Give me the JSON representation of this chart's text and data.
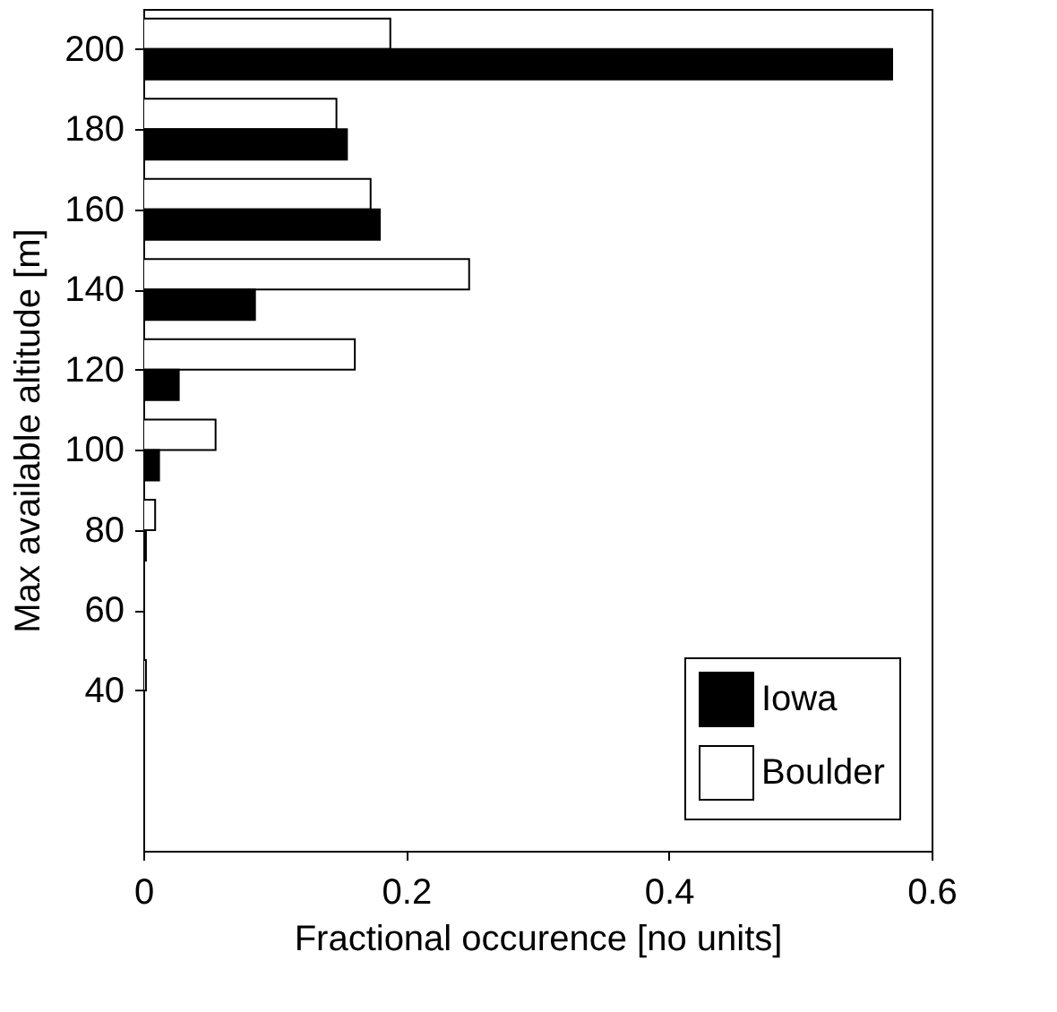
{
  "chart_data": {
    "type": "bar",
    "orientation": "horizontal",
    "xlabel": "Fractional occurence [no units]",
    "ylabel": "Max available altitude [m]",
    "x": [
      200,
      180,
      160,
      140,
      120,
      100,
      80,
      60,
      40
    ],
    "series": [
      {
        "name": "Boulder",
        "color": "#ffffff",
        "values": [
          0.188,
          0.147,
          0.173,
          0.248,
          0.161,
          0.055,
          0.009,
          null,
          0.002
        ]
      },
      {
        "name": "Iowa",
        "color": "#000000",
        "values": [
          0.57,
          0.155,
          0.18,
          0.085,
          0.027,
          0.012,
          0.002,
          null,
          null
        ]
      }
    ],
    "xlim": [
      0,
      0.6
    ],
    "xticks": [
      0,
      0.2,
      0.4,
      0.6
    ],
    "ylim": [
      0,
      210
    ],
    "yticks": [
      40,
      60,
      80,
      100,
      120,
      140,
      160,
      180,
      200
    ],
    "grid": false,
    "legend": "bottom right"
  }
}
